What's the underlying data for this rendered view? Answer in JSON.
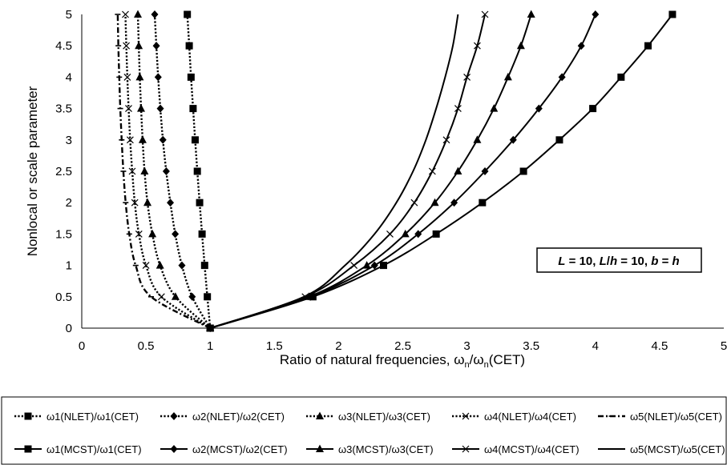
{
  "chart_data": {
    "type": "line",
    "xlabel": "Ratio of natural frequencies, ωn/ωn(CET)",
    "ylabel": "Nonlocal or scale parameter",
    "xlim": [
      0,
      5
    ],
    "ylim": [
      0,
      5
    ],
    "x_ticks": [
      "0",
      "0.5",
      "1",
      "1.5",
      "2",
      "2.5",
      "3",
      "3.5",
      "4",
      "4.5",
      "5"
    ],
    "y_ticks": [
      "0",
      "0.5",
      "1",
      "1.5",
      "2",
      "2.5",
      "3",
      "3.5",
      "4",
      "4.5",
      "5"
    ],
    "grid": false,
    "legend_position": "bottom",
    "annotation": "L = 10, L/h = 10, b = h",
    "y": [
      0,
      0.5,
      1,
      1.5,
      2,
      2.5,
      3,
      3.5,
      4,
      4.5,
      5
    ],
    "series": [
      {
        "name": "ω1(NLET)/ω1(CET)",
        "style": "dotted",
        "marker": "square",
        "x": [
          1,
          0.978,
          0.957,
          0.937,
          0.918,
          0.9,
          0.883,
          0.867,
          0.851,
          0.837,
          0.822
        ]
      },
      {
        "name": "ω2(NLET)/ω2(CET)",
        "style": "dotted",
        "marker": "diamond",
        "x": [
          1,
          0.86,
          0.78,
          0.728,
          0.69,
          0.658,
          0.632,
          0.612,
          0.595,
          0.581,
          0.568
        ]
      },
      {
        "name": "ω3(NLET)/ω3(CET)",
        "style": "dotted",
        "marker": "triangle",
        "x": [
          1,
          0.73,
          0.61,
          0.55,
          0.512,
          0.489,
          0.474,
          0.462,
          0.452,
          0.444,
          0.437
        ]
      },
      {
        "name": "ω4(NLET)/ω4(CET)",
        "style": "dotted",
        "marker": "x",
        "x": [
          1,
          0.62,
          0.5,
          0.445,
          0.413,
          0.393,
          0.377,
          0.365,
          0.355,
          0.347,
          0.34
        ]
      },
      {
        "name": "ω5(NLET)/ω5(CET)",
        "style": "dashdot",
        "marker": "dash",
        "x": [
          1,
          0.54,
          0.42,
          0.37,
          0.342,
          0.324,
          0.311,
          0.3,
          0.292,
          0.285,
          0.28
        ]
      },
      {
        "name": "ω1(MCST)/ω1(CET)",
        "style": "solid",
        "marker": "square",
        "x": [
          1,
          1.8,
          2.35,
          2.76,
          3.12,
          3.44,
          3.72,
          3.98,
          4.2,
          4.41,
          4.6
        ]
      },
      {
        "name": "ω2(MCST)/ω2(CET)",
        "style": "solid",
        "marker": "diamond",
        "x": [
          1,
          1.78,
          2.28,
          2.62,
          2.9,
          3.14,
          3.36,
          3.56,
          3.74,
          3.89,
          4.0
        ]
      },
      {
        "name": "ω3(MCST)/ω3(CET)",
        "style": "solid",
        "marker": "triangle",
        "x": [
          1,
          1.77,
          2.22,
          2.52,
          2.75,
          2.93,
          3.08,
          3.21,
          3.32,
          3.42,
          3.5
        ]
      },
      {
        "name": "ω4(MCST)/ω4(CET)",
        "style": "solid",
        "marker": "x",
        "x": [
          1,
          1.74,
          2.12,
          2.4,
          2.59,
          2.73,
          2.84,
          2.93,
          3.0,
          3.08,
          3.14
        ]
      },
      {
        "name": "ω5(MCST)/ω5(CET)",
        "style": "solid",
        "marker": "none",
        "x": [
          1,
          1.73,
          2.05,
          2.28,
          2.45,
          2.58,
          2.68,
          2.76,
          2.83,
          2.89,
          2.93
        ]
      }
    ]
  }
}
